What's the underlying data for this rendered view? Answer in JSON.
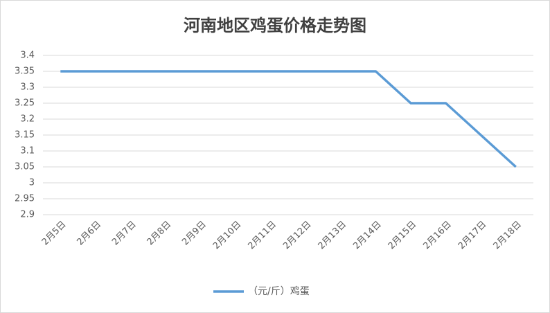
{
  "chart_data": {
    "type": "line",
    "title": "河南地区鸡蛋价格走势图",
    "categories": [
      "2月5日",
      "2月6日",
      "2月7日",
      "2月8日",
      "2月9日",
      "2月10日",
      "2月11日",
      "2月12日",
      "2月13日",
      "2月14日",
      "2月15日",
      "2月16日",
      "2月17日",
      "2月18日"
    ],
    "series": [
      {
        "name": "（元/斤）鸡蛋",
        "color": "#5b9bd5",
        "values": [
          3.35,
          3.35,
          3.35,
          3.35,
          3.35,
          3.35,
          3.35,
          3.35,
          3.35,
          3.35,
          3.25,
          3.25,
          3.15,
          3.05
        ]
      }
    ],
    "ylim": [
      2.9,
      3.4
    ],
    "yticks": [
      2.9,
      2.95,
      3,
      3.05,
      3.1,
      3.15,
      3.2,
      3.25,
      3.3,
      3.35,
      3.4
    ],
    "grid": true,
    "legend": "bottom"
  }
}
